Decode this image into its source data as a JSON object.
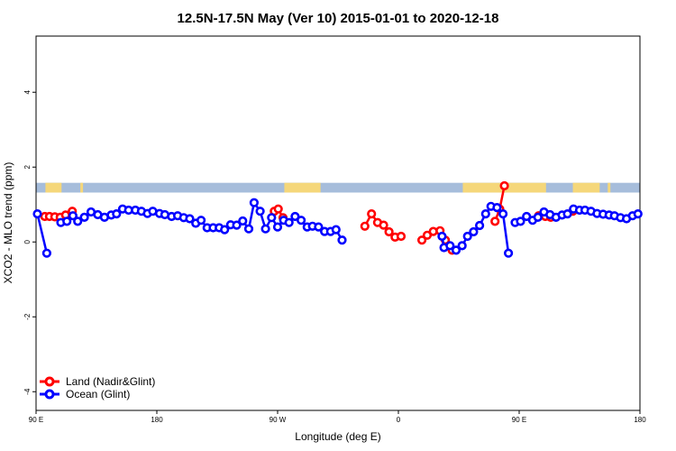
{
  "chart_data": {
    "type": "line",
    "title": "12.5N-17.5N May (Ver 10)   2015-01-01 to 2020-12-18",
    "xlabel": "Longitude (deg E)",
    "ylabel": "XCO2 - MLO trend (ppm)",
    "xlim": [
      90,
      540
    ],
    "ylim": [
      -4.5,
      5.5
    ],
    "x_ticks": [
      {
        "value": 90,
        "label": "90 E"
      },
      {
        "value": 180,
        "label": "180"
      },
      {
        "value": 270,
        "label": "90 W"
      },
      {
        "value": 360,
        "label": "0"
      },
      {
        "value": 450,
        "label": "90 E"
      },
      {
        "value": 540,
        "label": "180"
      }
    ],
    "y_ticks": [
      {
        "value": -4,
        "label": "-4"
      },
      {
        "value": -2,
        "label": "-2"
      },
      {
        "value": 0,
        "label": "0"
      },
      {
        "value": 2,
        "label": "2"
      },
      {
        "value": 4,
        "label": "4"
      }
    ],
    "grid": false,
    "legend_position": "bottom-left",
    "land_mask_band": {
      "y_range": [
        1.32,
        1.58
      ],
      "ocean_color": "#a6bddb",
      "land_color": "#f5d77a",
      "land_segments": [
        [
          97,
          109
        ],
        [
          123,
          125
        ],
        [
          275,
          302
        ],
        [
          408,
          470
        ],
        [
          490,
          510
        ],
        [
          516,
          518
        ]
      ]
    },
    "series": [
      {
        "name": "Land (Nadir&Glint)",
        "color": "#ff0000",
        "segments": [
          [
            [
              96.5,
              0.68
            ],
            [
              100,
              0.68
            ],
            [
              104,
              0.67
            ],
            [
              108,
              0.66
            ],
            [
              112,
              0.72
            ],
            [
              117,
              0.82
            ]
          ],
          [
            [
              267.5,
              0.82
            ],
            [
              270.5,
              0.88
            ],
            [
              274,
              0.65
            ]
          ],
          [
            [
              335,
              0.42
            ],
            [
              340,
              0.75
            ],
            [
              344.5,
              0.52
            ],
            [
              349,
              0.45
            ],
            [
              353,
              0.27
            ],
            [
              357.5,
              0.13
            ],
            [
              362,
              0.15
            ]
          ],
          [
            [
              377.5,
              0.05
            ],
            [
              381.5,
              0.18
            ],
            [
              386,
              0.28
            ],
            [
              391,
              0.3
            ],
            [
              395,
              0.05
            ],
            [
              400,
              -0.22
            ]
          ],
          [
            [
              432,
              0.55
            ],
            [
              435.5,
              0.88
            ],
            [
              439,
              1.5
            ]
          ],
          [
            [
              464.5,
              0.7
            ],
            [
              469.5,
              0.68
            ],
            [
              473.5,
              0.66
            ]
          ],
          [
            [
              490,
              0.82
            ]
          ]
        ]
      },
      {
        "name": "Ocean (Glint)",
        "color": "#0000ff",
        "segments": [
          [
            [
              91,
              0.75
            ],
            [
              98,
              -0.3
            ]
          ],
          [
            [
              108.5,
              0.52
            ],
            [
              113,
              0.55
            ],
            [
              117.5,
              0.7
            ],
            [
              121,
              0.55
            ],
            [
              126,
              0.66
            ],
            [
              131,
              0.8
            ],
            [
              136,
              0.73
            ],
            [
              141,
              0.66
            ],
            [
              146,
              0.72
            ],
            [
              150,
              0.75
            ],
            [
              154.5,
              0.88
            ],
            [
              159,
              0.85
            ],
            [
              164,
              0.85
            ],
            [
              168.5,
              0.82
            ],
            [
              173,
              0.76
            ],
            [
              177,
              0.82
            ],
            [
              182,
              0.76
            ],
            [
              186,
              0.73
            ],
            [
              191,
              0.68
            ],
            [
              195.5,
              0.7
            ],
            [
              200,
              0.65
            ],
            [
              204.5,
              0.62
            ],
            [
              209,
              0.5
            ],
            [
              213,
              0.58
            ],
            [
              217.5,
              0.38
            ],
            [
              222,
              0.38
            ],
            [
              226.5,
              0.38
            ],
            [
              230.5,
              0.33
            ],
            [
              235,
              0.46
            ],
            [
              239.5,
              0.45
            ],
            [
              244,
              0.56
            ],
            [
              248.5,
              0.35
            ],
            [
              252.5,
              1.05
            ],
            [
              257,
              0.82
            ],
            [
              261,
              0.35
            ],
            [
              265.5,
              0.65
            ],
            [
              270,
              0.4
            ],
            [
              274.5,
              0.58
            ],
            [
              278.5,
              0.52
            ],
            [
              283,
              0.68
            ],
            [
              287.5,
              0.58
            ],
            [
              292,
              0.4
            ],
            [
              296,
              0.42
            ],
            [
              300.5,
              0.4
            ],
            [
              305,
              0.28
            ],
            [
              309.5,
              0.28
            ],
            [
              313.5,
              0.33
            ],
            [
              318,
              0.05
            ]
          ],
          [
            [
              392.5,
              0.15
            ],
            [
              394,
              -0.15
            ],
            [
              398.5,
              -0.1
            ],
            [
              403,
              -0.22
            ],
            [
              407.5,
              -0.1
            ],
            [
              411.5,
              0.15
            ],
            [
              416,
              0.27
            ],
            [
              420.5,
              0.44
            ],
            [
              425,
              0.75
            ],
            [
              429,
              0.95
            ],
            [
              433.5,
              0.92
            ],
            [
              438,
              0.75
            ],
            [
              442,
              -0.3
            ]
          ],
          [
            [
              447,
              0.52
            ],
            [
              451,
              0.55
            ],
            [
              455.5,
              0.68
            ],
            [
              460,
              0.58
            ],
            [
              464,
              0.66
            ],
            [
              468.5,
              0.8
            ],
            [
              473,
              0.73
            ],
            [
              477.5,
              0.66
            ],
            [
              482,
              0.72
            ],
            [
              486,
              0.75
            ],
            [
              490.5,
              0.88
            ],
            [
              495,
              0.85
            ],
            [
              499,
              0.85
            ],
            [
              503.5,
              0.82
            ],
            [
              508,
              0.76
            ],
            [
              512.5,
              0.74
            ],
            [
              517,
              0.72
            ],
            [
              521,
              0.7
            ],
            [
              525.5,
              0.65
            ],
            [
              530,
              0.62
            ],
            [
              534.5,
              0.7
            ],
            [
              538.5,
              0.75
            ]
          ]
        ]
      }
    ]
  }
}
